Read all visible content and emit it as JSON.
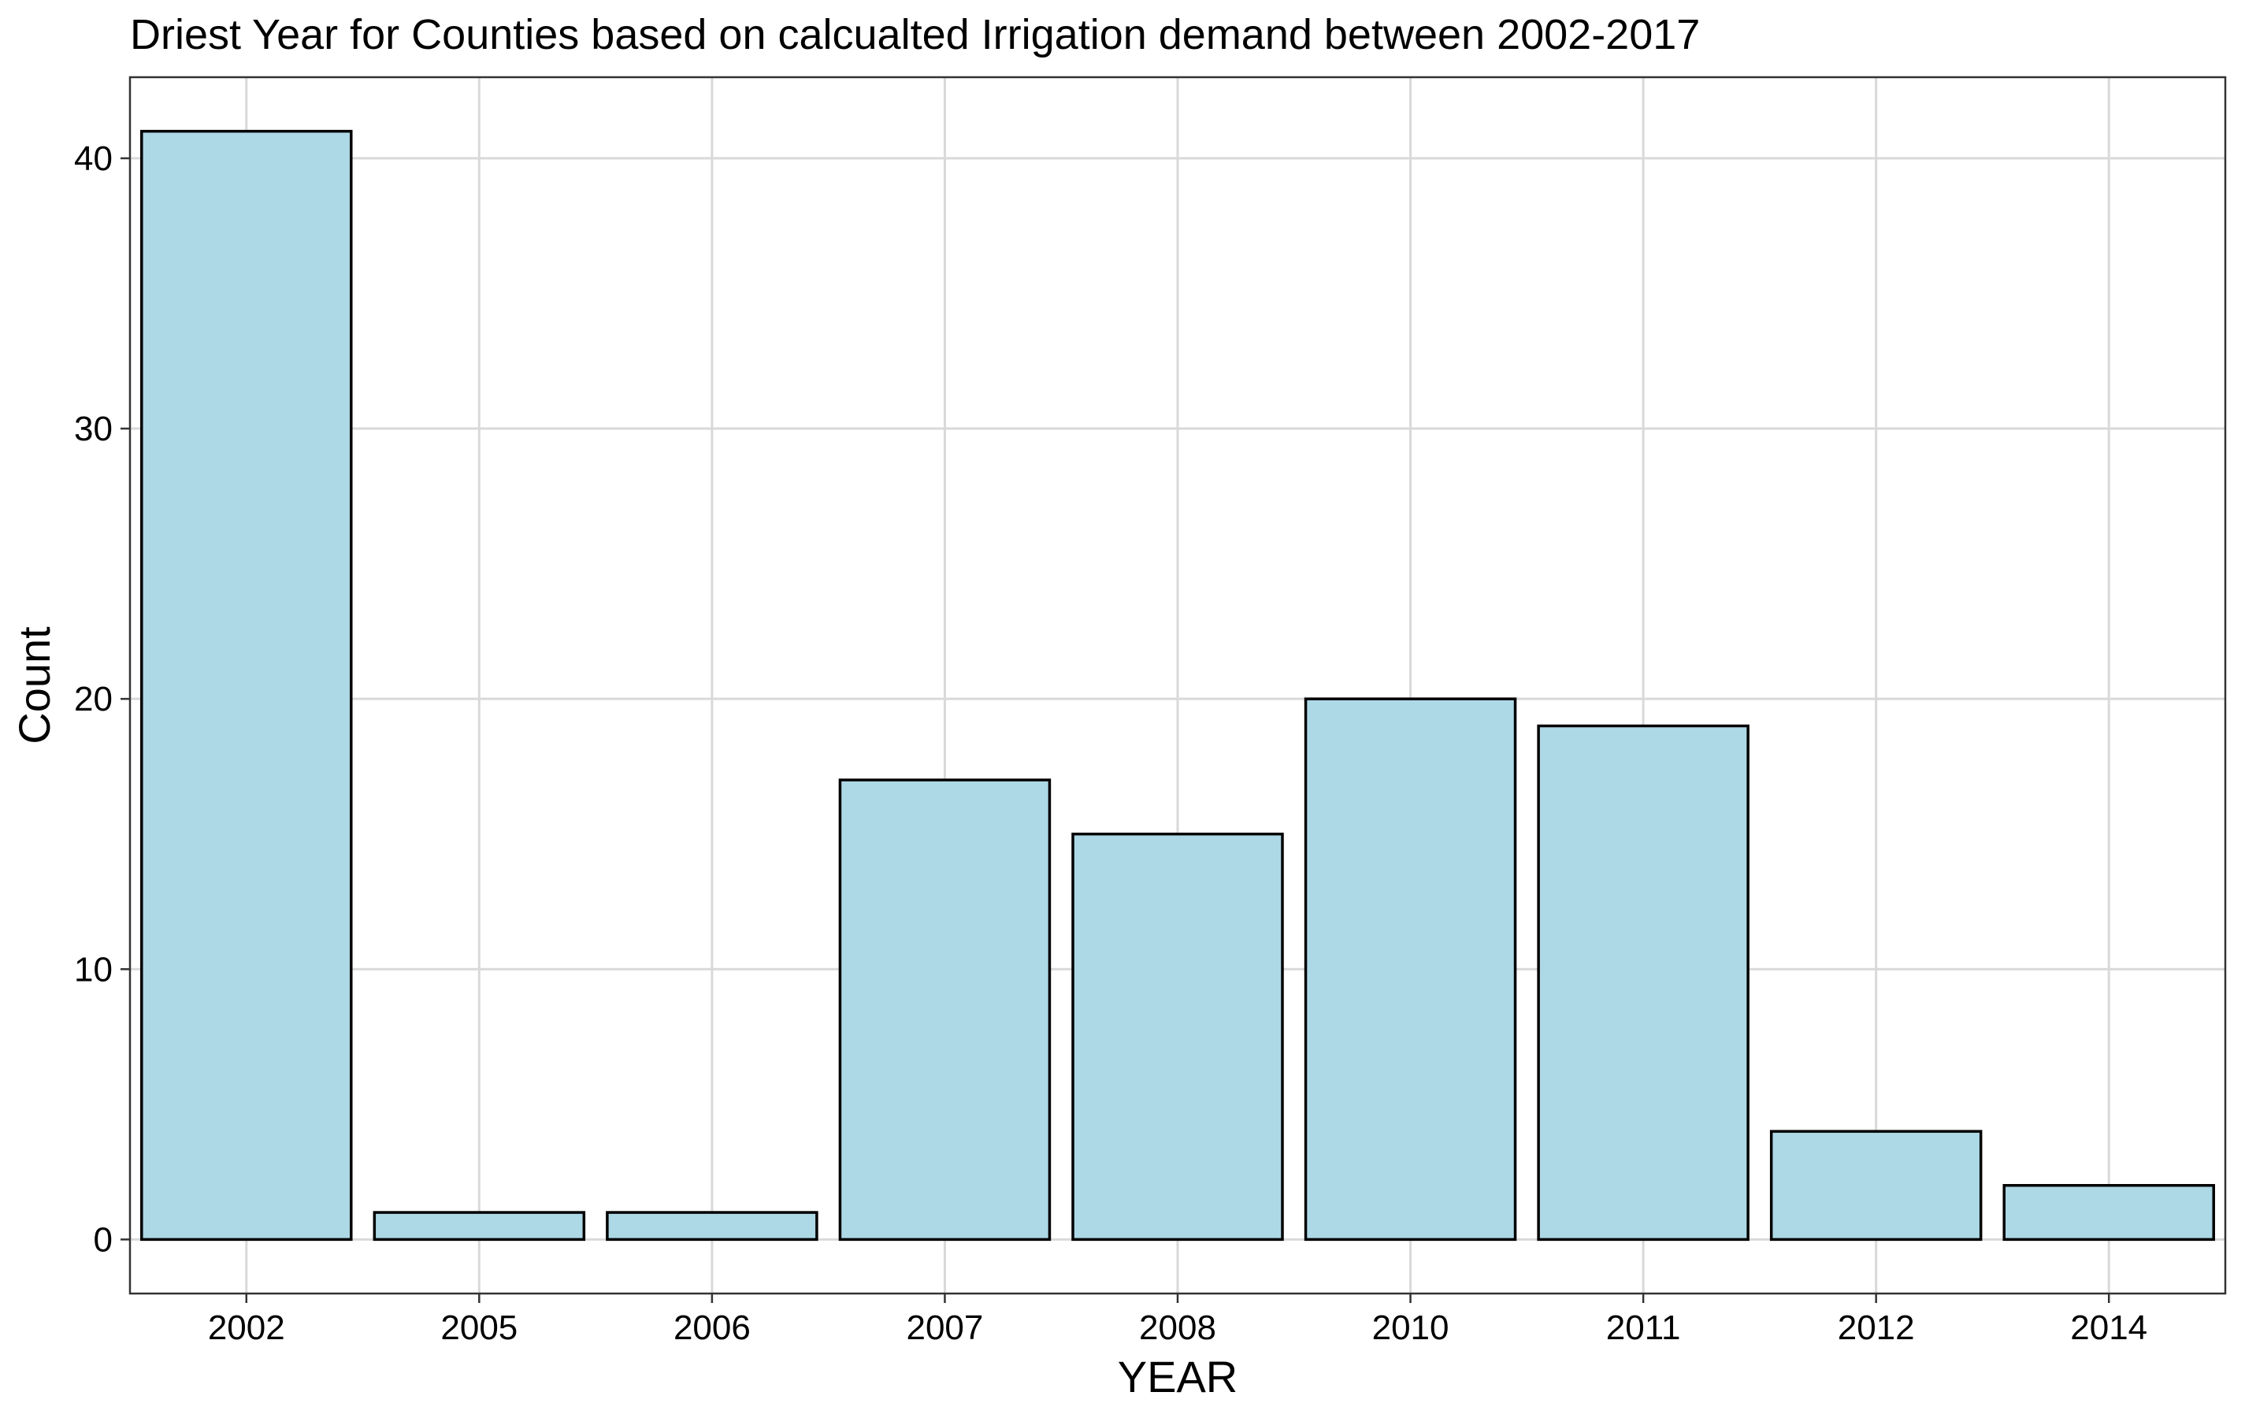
{
  "chart_data": {
    "type": "bar",
    "title": "Driest Year for Counties based on calcualted Irrigation demand between 2002-2017",
    "xlabel": "YEAR",
    "ylabel": "Count",
    "categories": [
      "2002",
      "2005",
      "2006",
      "2007",
      "2008",
      "2010",
      "2011",
      "2012",
      "2014"
    ],
    "values": [
      41,
      1,
      1,
      17,
      15,
      20,
      19,
      4,
      2
    ],
    "ylim": [
      -2,
      43
    ],
    "yticks": [
      0,
      10,
      20,
      30,
      40
    ],
    "grid": true,
    "legend": "none",
    "colors": {
      "bar_fill": "#add8e6",
      "bar_stroke": "#000000",
      "grid": "#d9d9d9",
      "panel_border": "#333333"
    }
  }
}
